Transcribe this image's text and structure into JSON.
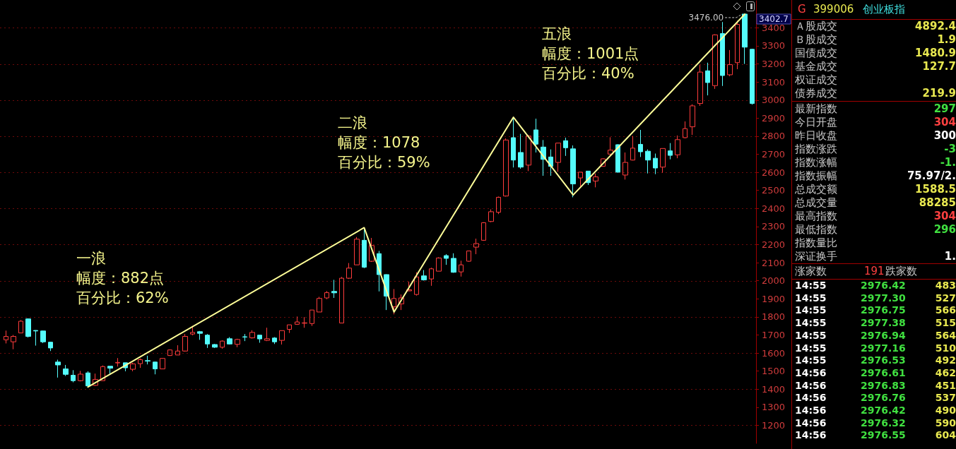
{
  "chart_data": [
    {
      "type": "candlestick",
      "categories": [
        null,
        null,
        null,
        null,
        null,
        null,
        null,
        null,
        null,
        null,
        null,
        null,
        null,
        null,
        null,
        null,
        null,
        null,
        null,
        null,
        null,
        null,
        null,
        null,
        null,
        null,
        null,
        null,
        null,
        null,
        null,
        null,
        null,
        null,
        null,
        null,
        null,
        null,
        null,
        null,
        null,
        null,
        null,
        null,
        null,
        null,
        null,
        null,
        null,
        null,
        null,
        null,
        null,
        null,
        null,
        null,
        null,
        null,
        null,
        null,
        null,
        null,
        null,
        null,
        null,
        null,
        null,
        null,
        null,
        null,
        null,
        null,
        null,
        null,
        null,
        null,
        null,
        null,
        null,
        null,
        null,
        null,
        null,
        null,
        null,
        null,
        null,
        null,
        null,
        null,
        null,
        null,
        null,
        null,
        null,
        null,
        null,
        null,
        null,
        null,
        null
      ],
      "ohlc": [
        [
          1673,
          1724,
          1653,
          1692
        ],
        [
          1662,
          1700,
          1621,
          1692
        ],
        [
          1711,
          1782,
          1711,
          1776
        ],
        [
          1789,
          1791,
          1686,
          1692
        ],
        [
          1725,
          1726,
          1641,
          1722
        ],
        [
          1722,
          1724,
          1655,
          1662
        ],
        [
          1660,
          1662,
          1611,
          1628
        ],
        [
          1550,
          1563,
          1464,
          1534
        ],
        [
          1512,
          1534,
          1473,
          1482
        ],
        [
          1477,
          1505,
          1438,
          1447
        ],
        [
          1447,
          1501,
          1443,
          1483
        ],
        [
          1490,
          1499,
          1412,
          1418
        ],
        [
          1421,
          1486,
          1418,
          1454
        ],
        [
          1447,
          1531,
          1447,
          1525
        ],
        [
          1527,
          1527,
          1479,
          1516
        ],
        [
          1545,
          1572,
          1525,
          1548
        ],
        [
          1546,
          1546,
          1499,
          1518
        ],
        [
          1510,
          1546,
          1499,
          1540
        ],
        [
          1541,
          1570,
          1518,
          1563
        ],
        [
          1558,
          1585,
          1537,
          1555
        ],
        [
          1550,
          1552,
          1482,
          1512
        ],
        [
          1512,
          1572,
          1512,
          1570
        ],
        [
          1586,
          1620,
          1584,
          1617
        ],
        [
          1589,
          1643,
          1589,
          1611
        ],
        [
          1611,
          1705,
          1608,
          1692
        ],
        [
          1705,
          1750,
          1698,
          1714
        ],
        [
          1718,
          1722,
          1673,
          1709
        ],
        [
          1699,
          1705,
          1628,
          1650
        ],
        [
          1647,
          1650,
          1628,
          1632
        ],
        [
          1632,
          1670,
          1624,
          1666
        ],
        [
          1679,
          1688,
          1647,
          1650
        ],
        [
          1648,
          1679,
          1632,
          1675
        ],
        [
          1690,
          1705,
          1666,
          1688
        ],
        [
          1684,
          1726,
          1680,
          1714
        ],
        [
          1699,
          1699,
          1657,
          1678
        ],
        [
          1670,
          1740,
          1666,
          1679
        ],
        [
          1683,
          1688,
          1650,
          1662
        ],
        [
          1670,
          1724,
          1647,
          1724
        ],
        [
          1731,
          1756,
          1711,
          1756
        ],
        [
          1759,
          1802,
          1756,
          1772
        ],
        [
          1765,
          1799,
          1740,
          1767
        ],
        [
          1763,
          1838,
          1750,
          1838
        ],
        [
          1827,
          1911,
          1827,
          1902
        ],
        [
          1905,
          1943,
          1898,
          1934
        ],
        [
          1941,
          2005,
          1905,
          1933
        ],
        [
          1766,
          2021,
          1766,
          2014
        ],
        [
          2014,
          2098,
          2010,
          2070
        ],
        [
          2088,
          2242,
          2088,
          2230
        ],
        [
          2224,
          2290,
          2070,
          2075
        ],
        [
          2108,
          2237,
          2104,
          2195
        ],
        [
          2150,
          2165,
          1941,
          2034
        ],
        [
          2034,
          2036,
          1838,
          1915
        ],
        [
          1856,
          1954,
          1814,
          1902
        ],
        [
          1872,
          1924,
          1838,
          1905
        ],
        [
          1944,
          1995,
          1943,
          1950
        ],
        [
          1924,
          2047,
          1918,
          2021
        ],
        [
          2027,
          2059,
          2001,
          2005
        ],
        [
          2010,
          2072,
          1972,
          2066
        ],
        [
          2053,
          2130,
          2053,
          2126
        ],
        [
          2139,
          2147,
          2088,
          2124
        ],
        [
          2124,
          2152,
          2044,
          2047
        ],
        [
          2049,
          2111,
          2023,
          2088
        ],
        [
          2108,
          2165,
          2105,
          2165
        ],
        [
          2186,
          2233,
          2147,
          2206
        ],
        [
          2224,
          2324,
          2221,
          2321
        ],
        [
          2328,
          2395,
          2324,
          2382
        ],
        [
          2379,
          2466,
          2369,
          2462
        ],
        [
          2469,
          2788,
          2466,
          2779
        ],
        [
          2792,
          2900,
          2627,
          2668
        ],
        [
          2710,
          2813,
          2620,
          2629
        ],
        [
          2640,
          2807,
          2607,
          2801
        ],
        [
          2835,
          2897,
          2710,
          2756
        ],
        [
          2740,
          2779,
          2581,
          2672
        ],
        [
          2685,
          2727,
          2581,
          2633
        ],
        [
          2655,
          2762,
          2603,
          2762
        ],
        [
          2775,
          2792,
          2691,
          2736
        ],
        [
          2730,
          2749,
          2462,
          2536
        ],
        [
          2569,
          2601,
          2523,
          2601
        ],
        [
          2607,
          2607,
          2530,
          2543
        ],
        [
          2552,
          2594,
          2517,
          2575
        ],
        [
          2633,
          2678,
          2633,
          2675
        ],
        [
          2701,
          2794,
          2697,
          2723
        ],
        [
          2753,
          2755,
          2598,
          2601
        ],
        [
          2585,
          2710,
          2560,
          2655
        ],
        [
          2668,
          2801,
          2666,
          2734
        ],
        [
          2755,
          2835,
          2685,
          2714
        ],
        [
          2717,
          2727,
          2594,
          2668
        ],
        [
          2678,
          2704,
          2590,
          2624
        ],
        [
          2629,
          2732,
          2598,
          2732
        ],
        [
          2719,
          2762,
          2672,
          2694
        ],
        [
          2697,
          2804,
          2678,
          2781
        ],
        [
          2792,
          2882,
          2788,
          2842
        ],
        [
          2852,
          2977,
          2807,
          2968
        ],
        [
          2981,
          3194,
          2968,
          3155
        ],
        [
          3162,
          3207,
          3026,
          3097
        ],
        [
          3080,
          3364,
          3062,
          3361
        ],
        [
          3368,
          3432,
          3078,
          3136
        ],
        [
          3140,
          3277,
          3132,
          3196
        ],
        [
          3207,
          3439,
          3171,
          3419
        ],
        [
          3476,
          3476,
          3200,
          3293
        ],
        [
          3281,
          3284,
          2975,
          2981
        ]
      ],
      "colors": [
        "#ff3c3c",
        "#ff3c3c",
        "#ff3c3c",
        "#54fcfc",
        "#54fcfc",
        "#54fcfc",
        "#54fcfc",
        "#54fcfc",
        "#54fcfc",
        "#54fcfc",
        "#ff3c3c",
        "#54fcfc",
        "#ff3c3c",
        "#ff3c3c",
        "#54fcfc",
        "#ff3c3c",
        "#54fcfc",
        "#ff3c3c",
        "#ff3c3c",
        "#54fcfc",
        "#54fcfc",
        "#ff3c3c",
        "#ff3c3c",
        "#ff3c3c",
        "#ff3c3c",
        "#ff3c3c",
        "#54fcfc",
        "#54fcfc",
        "#54fcfc",
        "#ff3c3c",
        "#54fcfc",
        "#ff3c3c",
        "#54fcfc",
        "#ff3c3c",
        "#54fcfc",
        "#ff3c3c",
        "#54fcfc",
        "#ff3c3c",
        "#ff3c3c",
        "#ff3c3c",
        "#ff3c3c",
        "#ff3c3c",
        "#ff3c3c",
        "#ff3c3c",
        "#54fcfc",
        "#ff3c3c",
        "#ff3c3c",
        "#ff3c3c",
        "#54fcfc",
        "#ff3c3c",
        "#54fcfc",
        "#54fcfc",
        "#ff3c3c",
        "#ff3c3c",
        "#ff3c3c",
        "#ff3c3c",
        "#54fcfc",
        "#ff3c3c",
        "#ff3c3c",
        "#54fcfc",
        "#54fcfc",
        "#ff3c3c",
        "#ff3c3c",
        "#ff3c3c",
        "#ff3c3c",
        "#ff3c3c",
        "#ff3c3c",
        "#ff3c3c",
        "#54fcfc",
        "#54fcfc",
        "#ff3c3c",
        "#54fcfc",
        "#54fcfc",
        "#54fcfc",
        "#ff3c3c",
        "#54fcfc",
        "#54fcfc",
        "#ff3c3c",
        "#54fcfc",
        "#ff3c3c",
        "#ff3c3c",
        "#ff3c3c",
        "#54fcfc",
        "#ff3c3c",
        "#ff3c3c",
        "#54fcfc",
        "#54fcfc",
        "#54fcfc",
        "#ff3c3c",
        "#54fcfc",
        "#ff3c3c",
        "#ff3c3c",
        "#ff3c3c",
        "#ff3c3c",
        "#54fcfc",
        "#ff3c3c",
        "#54fcfc",
        "#ff3c3c",
        "#ff3c3c",
        "#54fcfc",
        "#54fcfc"
      ],
      "series": [
        {
          "type": "line",
          "color": "#ffff99",
          "values": [
            null,
            null,
            null,
            null,
            null,
            null,
            null,
            null,
            null,
            null,
            null,
            1412,
            null,
            null,
            null,
            null,
            null,
            null,
            null,
            null,
            null,
            null,
            null,
            null,
            null,
            null,
            null,
            null,
            null,
            null,
            null,
            null,
            null,
            null,
            null,
            null,
            null,
            null,
            null,
            null,
            null,
            null,
            null,
            null,
            null,
            null,
            null,
            null,
            2294,
            null,
            null,
            null,
            1827,
            null,
            null,
            null,
            null,
            null,
            null,
            null,
            null,
            null,
            null,
            null,
            null,
            null,
            null,
            null,
            2905,
            null,
            null,
            null,
            null,
            null,
            null,
            null,
            2475,
            null,
            null,
            null,
            null,
            null,
            null,
            null,
            null,
            null,
            null,
            null,
            null,
            null,
            null,
            null,
            null,
            null,
            null,
            null,
            null,
            null,
            null,
            3476,
            null
          ]
        }
      ],
      "marker": "none",
      "ylim": [
        1100,
        3550
      ],
      "yticks": [
        1200,
        1300,
        1400,
        1500,
        1600,
        1700,
        1800,
        1900,
        2000,
        2100,
        2200,
        2300,
        2400,
        2500,
        2600,
        2700,
        2800,
        2900,
        3000,
        3100,
        3200,
        3300,
        3400
      ],
      "grid": "y",
      "annotations": [
        "一浪",
        "幅度：882点",
        "百分比：62%",
        "二浪",
        "幅度：1078",
        "百分比：59%",
        "五浪",
        "幅度：1001点",
        "百分比：40%",
        "3476.00",
        "3402.7"
      ]
    },
    {
      "type": "other",
      "annotations": [
        "G",
        "399006",
        "创业板指",
        "Ａ股成交",
        "4892.4",
        "Ｂ股成交",
        "1.9",
        "国债成交",
        "1480.9",
        "基金成交",
        "127.7",
        "权证成交",
        "债券成交",
        "219.9",
        "最新指数",
        "297",
        "今日开盘",
        "304",
        "昨日收盘",
        "300",
        "指数涨跌",
        "-3",
        "指数涨幅",
        "-1.",
        "指数振幅",
        "75.97/2.",
        "总成交额",
        "1588.5",
        "总成交量",
        "88285",
        "最高指数",
        "304",
        "最低指数",
        "296",
        "指数量比",
        "深证换手",
        "1.",
        "涨家数",
        "191",
        "跌家数",
        "14:55",
        "2976.42",
        "483",
        "14:55",
        "2977.30",
        "527",
        "14:55",
        "2976.75",
        "566",
        "14:55",
        "2977.38",
        "515",
        "14:55",
        "2976.94",
        "564",
        "14:55",
        "2977.16",
        "510",
        "14:55",
        "2976.53",
        "492",
        "14:56",
        "2976.61",
        "462",
        "14:56",
        "2976.83",
        "451",
        "14:56",
        "2976.76",
        "537",
        "14:56",
        "2976.42",
        "490",
        "14:56",
        "2976.32",
        "590",
        "14:56",
        "2976.55",
        "604"
      ]
    }
  ]
}
